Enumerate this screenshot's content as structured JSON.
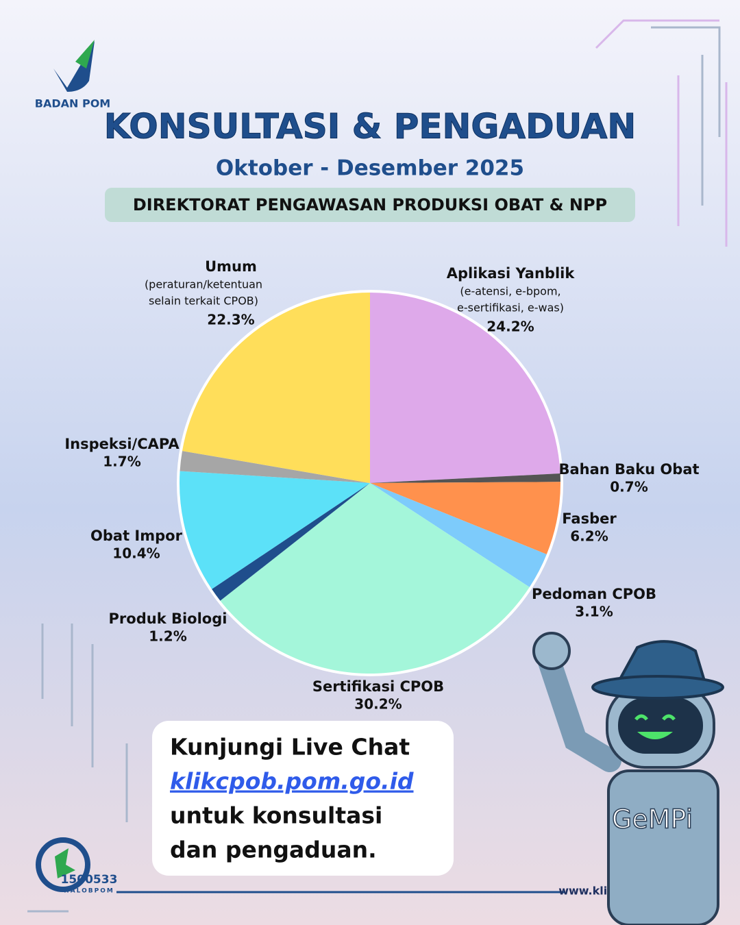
{
  "page": {
    "logo_text": "BADAN POM",
    "subtitle_band": "DIREKTORAT PENGAWASAN PRODUKSI OBAT & NPP",
    "box_lines": [
      "Kunjungi  Live  Chat",
      "klikcpob.pom.go.id",
      "untuk konsultasi",
      "dan pengaduan."
    ],
    "hotline": "1500533",
    "hotline_sub": "HALOBPOM",
    "website": "www.klikcpob.pom.go.id",
    "mascot": "GeMPi"
  },
  "chart_data": {
    "type": "pie",
    "title": "KONSULTASI & PENGADUAN",
    "subtitle": "Oktober - Desember 2025",
    "categories": [
      "Aplikasi Yanblik",
      "Bahan Baku Obat",
      "Fasber",
      "Pedoman CPOB",
      "Sertifikasi CPOB",
      "Produk Biologi",
      "Obat Impor",
      "Inspeksi/CAPA",
      "Umum"
    ],
    "descriptions": [
      [
        "(e-atensi, e-bpom,",
        "e-sertifikasi, e-was)"
      ],
      null,
      null,
      null,
      null,
      null,
      null,
      null,
      [
        "(peraturan/ketentuan",
        "selain terkait CPOB)"
      ]
    ],
    "values": [
      24.2,
      0.7,
      6.2,
      3.1,
      30.2,
      1.2,
      10.4,
      1.7,
      22.3
    ],
    "value_labels": [
      "24.2%",
      "0.7%",
      "6.2%",
      "3.1%",
      "30.2%",
      "1.2%",
      "10.4%",
      "1.7%",
      "22.3%"
    ],
    "colors": [
      "#dea9ea",
      "#545454",
      "#ff914d",
      "#7dcbfb",
      "#a4f6da",
      "#1f4e8c",
      "#5ce1f8",
      "#a6a6a6",
      "#ffde5a"
    ]
  }
}
